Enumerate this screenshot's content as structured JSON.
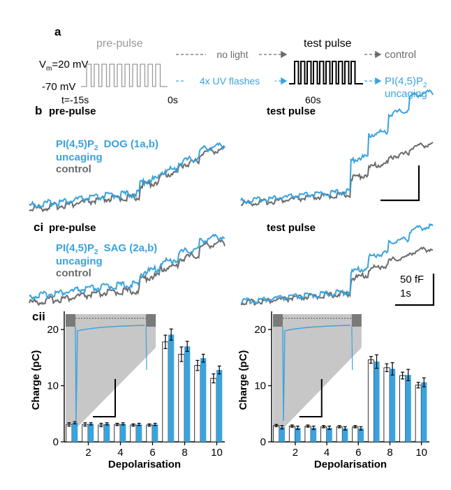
{
  "colors": {
    "uncaging": "#3aa3dd",
    "control": "#6b6b6b",
    "prepulse": "#9a9a9a",
    "black": "#000000",
    "inset_bg": "#c7c7c7"
  },
  "panel_a": {
    "label": "a",
    "prepulse_title": "pre-pulse",
    "vm_label": "V",
    "vm_sub": "m",
    "vm_value": "=20 mV",
    "rest_label": "-70 mV",
    "t_start": "t=-15s",
    "t_zero": "0s",
    "t_60": "60s",
    "test_title": "test pulse",
    "no_light": "no light",
    "uv_flashes": "4x UV flashes",
    "out_control": "control",
    "out_pip2": "PI(4,5)P",
    "out_pip2_sub": "2",
    "out_uncaging": "uncaging"
  },
  "panel_b": {
    "label": "b",
    "left_title": "pre-pulse",
    "right_title": "test pulse",
    "legend_line1": "PI(4,5)P",
    "legend_sub": "2",
    "legend_compound": "DOG (1a,b)",
    "legend_line2": "uncaging",
    "legend_line3": "control"
  },
  "panel_ci": {
    "label": "ci",
    "left_title": "pre-pulse",
    "right_title": "test pulse",
    "legend_line1": "PI(4,5)P",
    "legend_sub": "2",
    "legend_compound": "SAG (2a,b)",
    "legend_line2": "uncaging",
    "legend_line3": "control",
    "scale_y": "50 fF",
    "scale_x": "1s"
  },
  "panel_cii": {
    "label": "cii"
  },
  "chart_data": [
    {
      "type": "bar",
      "panel": "cii-left",
      "xlabel": "Depolarisation",
      "ylabel": "Charge (pC)",
      "ylim": [
        0,
        22
      ],
      "yticks": [
        0,
        10,
        20
      ],
      "xticks": [
        2,
        4,
        6,
        8,
        10
      ],
      "categories": [
        1,
        2,
        3,
        4,
        5,
        6,
        7,
        8,
        9,
        10
      ],
      "series": [
        {
          "color": "#ffffff",
          "values": [
            3.1,
            3.1,
            3.0,
            3.1,
            3.0,
            3.0,
            17.8,
            15.6,
            13.6,
            11.3
          ],
          "errors": [
            0.3,
            0.3,
            0.3,
            0.2,
            0.2,
            0.2,
            1.2,
            1.3,
            0.9,
            0.8
          ]
        },
        {
          "color": "#3aa3dd",
          "values": [
            3.4,
            3.2,
            3.2,
            3.2,
            3.1,
            3.1,
            19.1,
            17.0,
            14.9,
            12.8
          ],
          "errors": [
            0.2,
            0.2,
            0.2,
            0.2,
            0.2,
            0.2,
            1.0,
            0.9,
            0.7,
            0.7
          ]
        }
      ]
    },
    {
      "type": "bar",
      "panel": "cii-right",
      "xlabel": "Depolarisation",
      "ylabel": "Charge (pC)",
      "ylim": [
        0,
        22
      ],
      "yticks": [
        0,
        10,
        20
      ],
      "xticks": [
        2,
        4,
        6,
        8,
        10
      ],
      "categories": [
        1,
        2,
        3,
        4,
        5,
        6,
        7,
        8,
        9,
        10
      ],
      "series": [
        {
          "color": "#ffffff",
          "values": [
            2.9,
            2.8,
            2.8,
            2.7,
            2.7,
            2.7,
            14.6,
            13.2,
            11.8,
            10.1
          ],
          "errors": [
            0.2,
            0.2,
            0.2,
            0.2,
            0.2,
            0.2,
            0.6,
            0.7,
            0.6,
            0.5
          ]
        },
        {
          "color": "#3aa3dd",
          "values": [
            2.6,
            2.5,
            2.5,
            2.5,
            2.4,
            2.4,
            14.3,
            13.0,
            11.9,
            10.6
          ],
          "errors": [
            0.3,
            0.3,
            0.3,
            0.3,
            0.3,
            0.3,
            1.2,
            1.1,
            1.0,
            0.8
          ]
        }
      ]
    }
  ]
}
